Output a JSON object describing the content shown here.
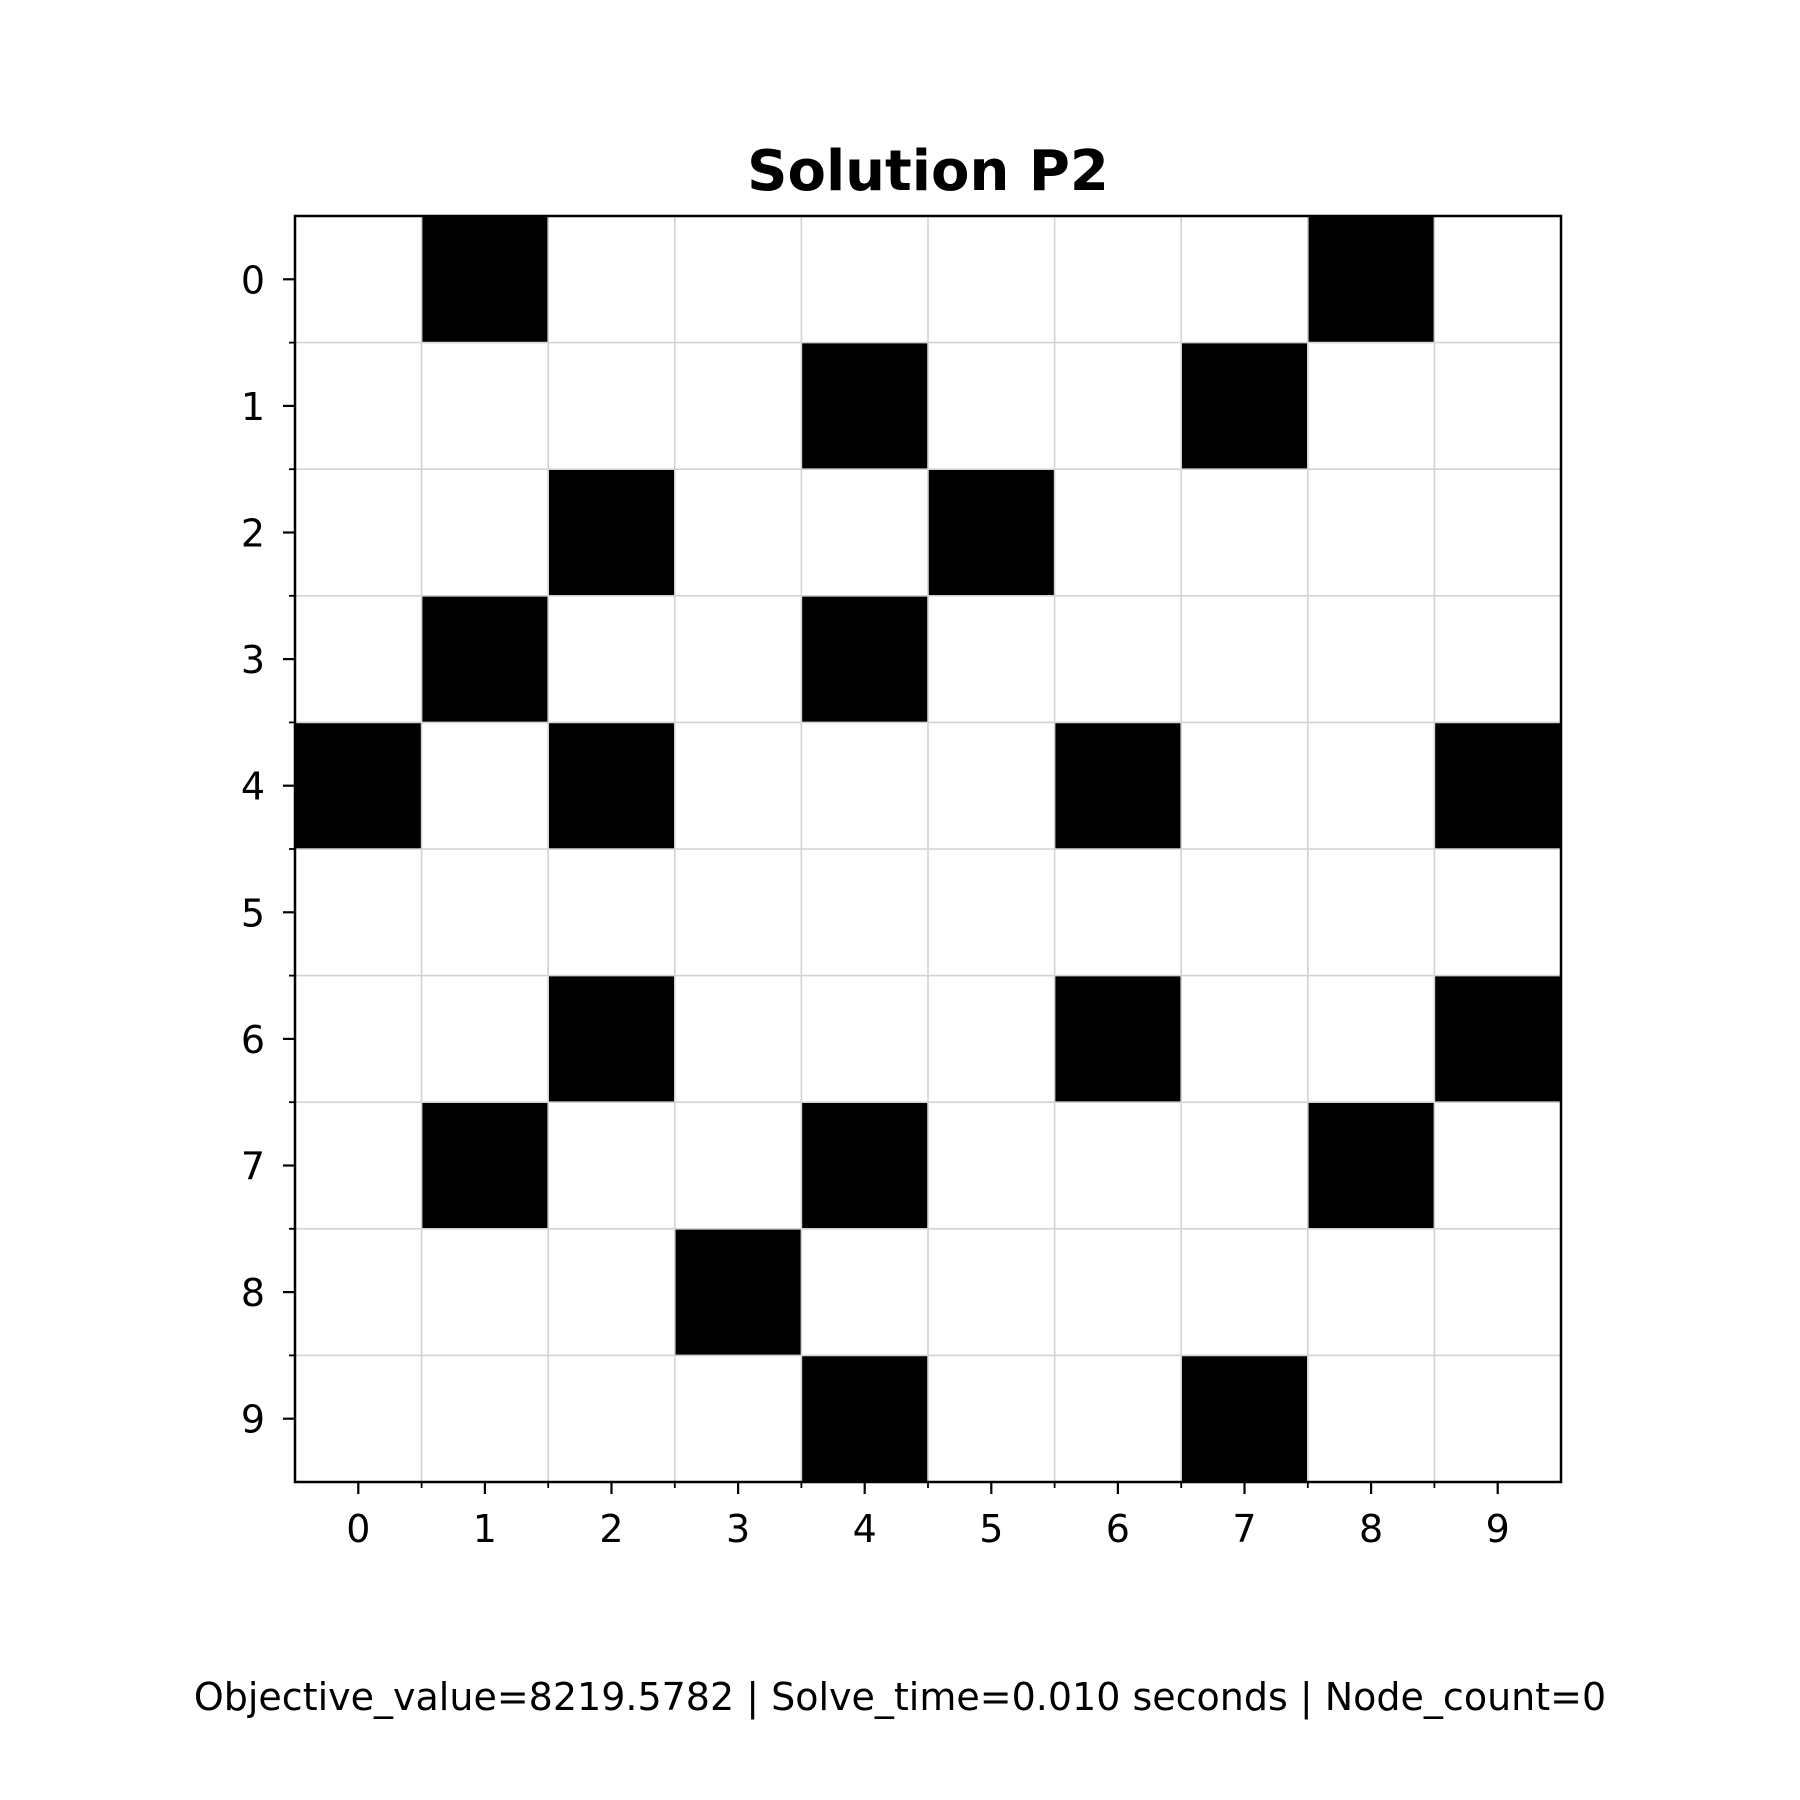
{
  "chart_data": {
    "type": "heatmap",
    "title": "Solution P2",
    "xlabel": "",
    "ylabel": "",
    "x_ticks": [
      "0",
      "1",
      "2",
      "3",
      "4",
      "5",
      "6",
      "7",
      "8",
      "9"
    ],
    "y_ticks": [
      "0",
      "1",
      "2",
      "3",
      "4",
      "5",
      "6",
      "7",
      "8",
      "9"
    ],
    "x_range": [
      0,
      9
    ],
    "y_range": [
      0,
      9
    ],
    "y_axis_direction": "top-to-bottom",
    "grid": true,
    "colormap": {
      "0": "#ffffff",
      "1": "#000000"
    },
    "grid_color": "#d3d3d3",
    "matrix": [
      [
        0,
        1,
        0,
        0,
        0,
        0,
        0,
        0,
        1,
        0
      ],
      [
        0,
        0,
        0,
        0,
        1,
        0,
        0,
        1,
        0,
        0
      ],
      [
        0,
        0,
        1,
        0,
        0,
        1,
        0,
        0,
        0,
        0
      ],
      [
        0,
        1,
        0,
        0,
        1,
        0,
        0,
        0,
        0,
        0
      ],
      [
        1,
        0,
        1,
        0,
        0,
        0,
        1,
        0,
        0,
        1
      ],
      [
        0,
        0,
        0,
        0,
        0,
        0,
        0,
        0,
        0,
        0
      ],
      [
        0,
        0,
        1,
        0,
        0,
        0,
        1,
        0,
        0,
        1
      ],
      [
        0,
        1,
        0,
        0,
        1,
        0,
        0,
        0,
        1,
        0
      ],
      [
        0,
        0,
        0,
        1,
        0,
        0,
        0,
        0,
        0,
        0
      ],
      [
        0,
        0,
        0,
        0,
        1,
        0,
        0,
        1,
        0,
        0
      ]
    ],
    "footer": "Objective_value=8219.5782 | Solve_time=0.010 seconds | Node_count=0"
  }
}
